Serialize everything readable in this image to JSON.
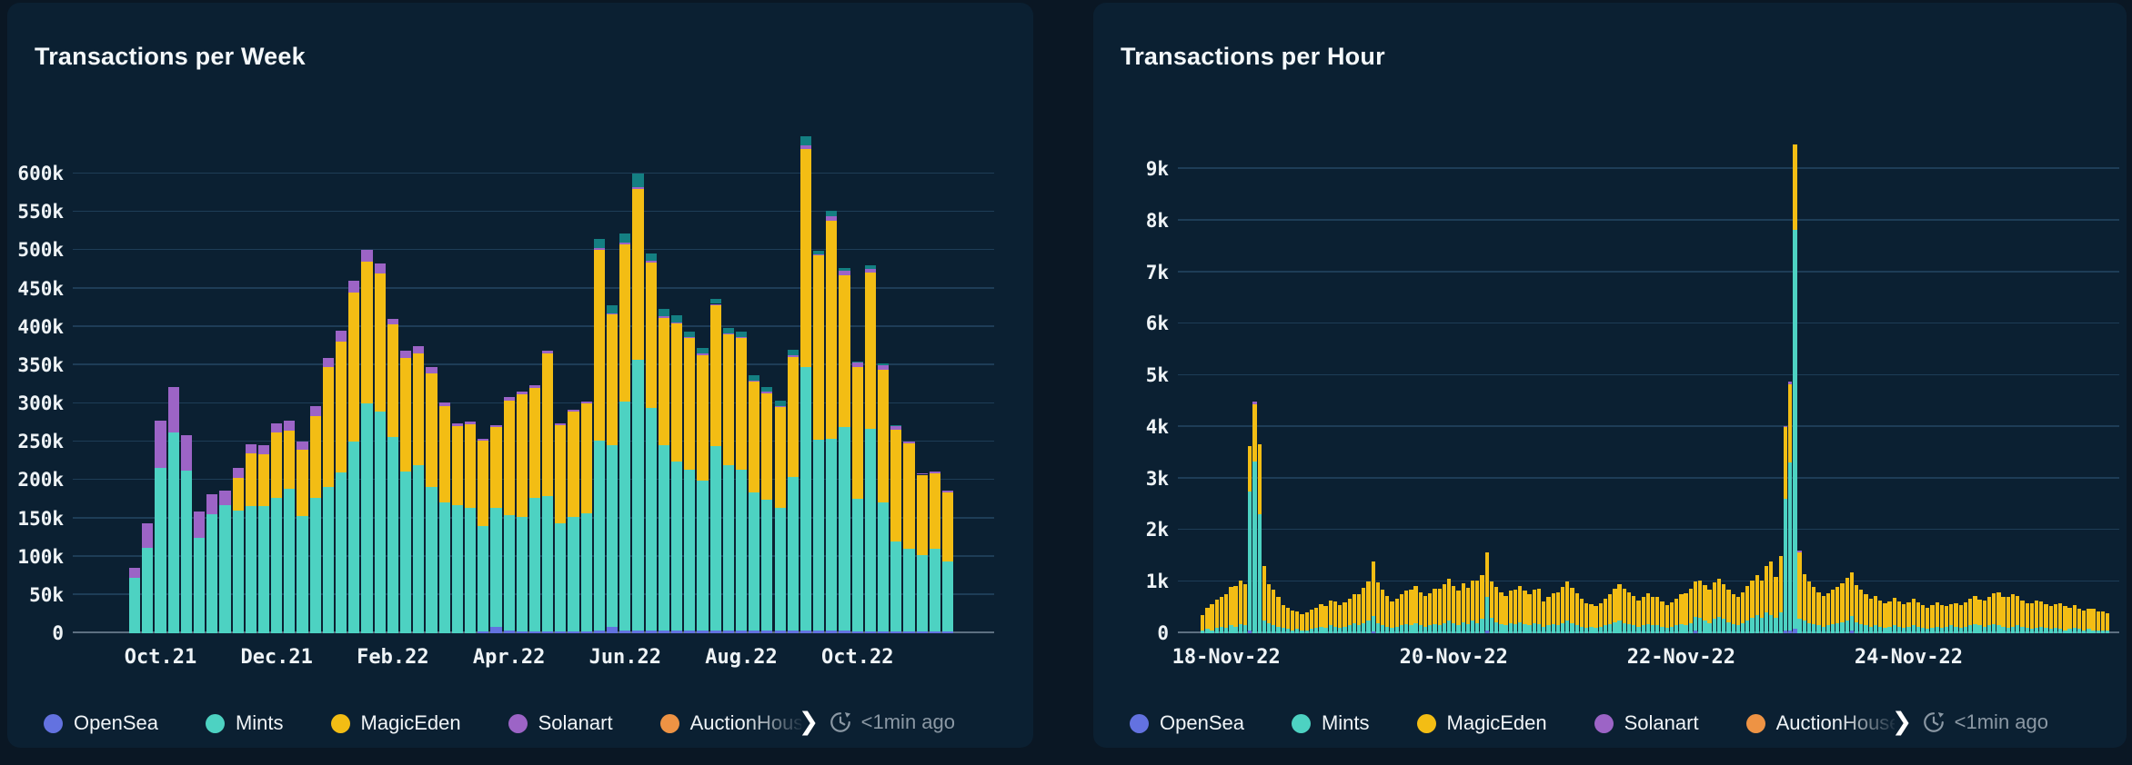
{
  "page": {
    "background": "#0a1724",
    "card_background": "#0b2032"
  },
  "legend": {
    "items": [
      {
        "label": "OpenSea",
        "color": "#6372e0"
      },
      {
        "label": "Mints",
        "color": "#4dd2c2"
      },
      {
        "label": "MagicEden",
        "color": "#f3bd14"
      },
      {
        "label": "Solanart",
        "color": "#9c64c6"
      },
      {
        "label": "AuctionHouse",
        "color": "#ee9344"
      }
    ],
    "overflow_chevron": "❯",
    "updated": "<1min ago"
  },
  "chart_data": [
    {
      "type": "bar",
      "stacked": true,
      "title": "Transactions per Week",
      "xlabel": "",
      "ylabel": "",
      "grid": true,
      "legend_position": "bottom",
      "value_unit": "k (thousands of transactions)",
      "ylim": [
        0,
        650
      ],
      "y_ticks": [
        {
          "v": 0,
          "label": "0"
        },
        {
          "v": 50,
          "label": "50k"
        },
        {
          "v": 100,
          "label": "100k"
        },
        {
          "v": 150,
          "label": "150k"
        },
        {
          "v": 200,
          "label": "200k"
        },
        {
          "v": 250,
          "label": "250k"
        },
        {
          "v": 300,
          "label": "300k"
        },
        {
          "v": 350,
          "label": "350k"
        },
        {
          "v": 400,
          "label": "400k"
        },
        {
          "v": 450,
          "label": "450k"
        },
        {
          "v": 500,
          "label": "500k"
        },
        {
          "v": 550,
          "label": "550k"
        },
        {
          "v": 600,
          "label": "600k"
        }
      ],
      "x_ticks": [
        {
          "index": 2,
          "label": "Oct.21"
        },
        {
          "index": 11,
          "label": "Dec.21"
        },
        {
          "index": 20,
          "label": "Feb.22"
        },
        {
          "index": 29,
          "label": "Apr.22"
        },
        {
          "index": 38,
          "label": "Jun.22"
        },
        {
          "index": 47,
          "label": "Aug.22"
        },
        {
          "index": 56,
          "label": "Oct.22"
        }
      ],
      "series_order": [
        "OpenSea",
        "Mints",
        "MagicEden",
        "Solanart",
        "Unlabeled (dark teal)"
      ],
      "colors": [
        "#6372e0",
        "#4dd2c2",
        "#f3bd14",
        "#9c64c6",
        "#147f82"
      ],
      "bars": [
        [
          0,
          72,
          0,
          13,
          0
        ],
        [
          0,
          111,
          0,
          33,
          0
        ],
        [
          0,
          216,
          0,
          61,
          0
        ],
        [
          0,
          262,
          0,
          59,
          0
        ],
        [
          0,
          212,
          0,
          47,
          0
        ],
        [
          0,
          124,
          0,
          35,
          0
        ],
        [
          0,
          155,
          0,
          27,
          0
        ],
        [
          0,
          167,
          0,
          19,
          0
        ],
        [
          0,
          160,
          43,
          13,
          0
        ],
        [
          0,
          166,
          69,
          12,
          0
        ],
        [
          0,
          166,
          68,
          12,
          0
        ],
        [
          0,
          177,
          85,
          12,
          0
        ],
        [
          0,
          189,
          76,
          12,
          0
        ],
        [
          0,
          153,
          87,
          10,
          0
        ],
        [
          0,
          177,
          107,
          12,
          0
        ],
        [
          0,
          191,
          156,
          13,
          0
        ],
        [
          0,
          210,
          171,
          14,
          0
        ],
        [
          0,
          250,
          195,
          15,
          0
        ],
        [
          0,
          300,
          185,
          15,
          0
        ],
        [
          0,
          290,
          180,
          13,
          0
        ],
        [
          0,
          256,
          147,
          7,
          0
        ],
        [
          0,
          211,
          149,
          9,
          0
        ],
        [
          0,
          220,
          145,
          10,
          0
        ],
        [
          0,
          191,
          148,
          8,
          0
        ],
        [
          0,
          171,
          126,
          4,
          0
        ],
        [
          0,
          167,
          104,
          3,
          0
        ],
        [
          0,
          164,
          109,
          3,
          0
        ],
        [
          2,
          138,
          111,
          3,
          0
        ],
        [
          8,
          156,
          105,
          3,
          0
        ],
        [
          4,
          150,
          150,
          4,
          0
        ],
        [
          2,
          150,
          160,
          4,
          0
        ],
        [
          2,
          175,
          143,
          4,
          0
        ],
        [
          2,
          177,
          186,
          4,
          0
        ],
        [
          2,
          142,
          128,
          2,
          0
        ],
        [
          2,
          150,
          138,
          2,
          0
        ],
        [
          2,
          155,
          143,
          2,
          0
        ],
        [
          4,
          248,
          249,
          2,
          12
        ],
        [
          8,
          238,
          170,
          2,
          10
        ],
        [
          4,
          298,
          206,
          2,
          12
        ],
        [
          4,
          353,
          223,
          2,
          18
        ],
        [
          4,
          290,
          190,
          2,
          10
        ],
        [
          4,
          241,
          167,
          2,
          9
        ],
        [
          4,
          220,
          180,
          2,
          9
        ],
        [
          4,
          209,
          172,
          2,
          7
        ],
        [
          4,
          195,
          164,
          2,
          7
        ],
        [
          4,
          240,
          184,
          2,
          7
        ],
        [
          4,
          215,
          171,
          2,
          7
        ],
        [
          4,
          210,
          171,
          2,
          7
        ],
        [
          4,
          180,
          144,
          2,
          7
        ],
        [
          4,
          170,
          139,
          2,
          7
        ],
        [
          4,
          160,
          131,
          2,
          7
        ],
        [
          4,
          200,
          157,
          2,
          7
        ],
        [
          4,
          344,
          284,
          5,
          12
        ],
        [
          4,
          249,
          240,
          2,
          4
        ],
        [
          4,
          250,
          284,
          7,
          7
        ],
        [
          4,
          265,
          198,
          6,
          4
        ],
        [
          2,
          173,
          172,
          6,
          2
        ],
        [
          2,
          265,
          204,
          5,
          4
        ],
        [
          2,
          169,
          173,
          6,
          2
        ],
        [
          2,
          118,
          146,
          4,
          2
        ],
        [
          2,
          108,
          138,
          2,
          0
        ],
        [
          2,
          100,
          105,
          2,
          0
        ],
        [
          2,
          108,
          99,
          2,
          0
        ],
        [
          2,
          92,
          90,
          2,
          0
        ]
      ]
    },
    {
      "type": "bar",
      "stacked": true,
      "title": "Transactions per Hour",
      "xlabel": "",
      "ylabel": "",
      "grid": true,
      "legend_position": "bottom",
      "value_unit": "k (thousands of transactions)",
      "ylim": [
        0,
        9.65
      ],
      "y_ticks": [
        {
          "v": 0,
          "label": "0"
        },
        {
          "v": 1,
          "label": "1k"
        },
        {
          "v": 2,
          "label": "2k"
        },
        {
          "v": 3,
          "label": "3k"
        },
        {
          "v": 4,
          "label": "4k"
        },
        {
          "v": 5,
          "label": "5k"
        },
        {
          "v": 6,
          "label": "6k"
        },
        {
          "v": 7,
          "label": "7k"
        },
        {
          "v": 8,
          "label": "8k"
        },
        {
          "v": 9,
          "label": "9k"
        }
      ],
      "x_ticks": [
        {
          "index": 5,
          "label": "18-Nov-22"
        },
        {
          "index": 53,
          "label": "20-Nov-22"
        },
        {
          "index": 101,
          "label": "22-Nov-22"
        },
        {
          "index": 149,
          "label": "24-Nov-22"
        }
      ],
      "series_order": [
        "OpenSea",
        "Mints",
        "MagicEden",
        "Solanart"
      ],
      "colors": [
        "#6372e0",
        "#4dd2c2",
        "#f3bd14",
        "#9c64c6"
      ],
      "mints": [
        0.05,
        0.08,
        0.06,
        0.1,
        0.12,
        0.1,
        0.15,
        0.12,
        0.18,
        0.15,
        2.69,
        3.32,
        2.31,
        0.25,
        0.2,
        0.15,
        0.12,
        0.1,
        0.08,
        0.06,
        0.08,
        0.05,
        0.06,
        0.08,
        0.1,
        0.12,
        0.1,
        0.15,
        0.12,
        0.1,
        0.12,
        0.15,
        0.2,
        0.15,
        0.2,
        0.25,
        0.3,
        0.2,
        0.15,
        0.12,
        0.1,
        0.12,
        0.15,
        0.18,
        0.15,
        0.2,
        0.15,
        0.12,
        0.15,
        0.18,
        0.15,
        0.2,
        0.25,
        0.2,
        0.15,
        0.22,
        0.18,
        0.25,
        0.2,
        0.28,
        0.65,
        0.3,
        0.22,
        0.18,
        0.15,
        0.2,
        0.18,
        0.22,
        0.18,
        0.15,
        0.2,
        0.18,
        0.12,
        0.15,
        0.18,
        0.15,
        0.2,
        0.25,
        0.2,
        0.15,
        0.12,
        0.1,
        0.12,
        0.1,
        0.12,
        0.15,
        0.18,
        0.22,
        0.25,
        0.2,
        0.18,
        0.15,
        0.12,
        0.15,
        0.18,
        0.15,
        0.15,
        0.12,
        0.1,
        0.12,
        0.15,
        0.18,
        0.15,
        0.2,
        0.25,
        0.3,
        0.25,
        0.2,
        0.28,
        0.32,
        0.28,
        0.22,
        0.18,
        0.15,
        0.2,
        0.25,
        0.3,
        0.35,
        0.3,
        0.4,
        0.35,
        0.3,
        0.4,
        2.56,
        3.25,
        7.74,
        0.28,
        0.25,
        0.2,
        0.18,
        0.15,
        0.12,
        0.15,
        0.18,
        0.2,
        0.22,
        0.25,
        0.28,
        0.22,
        0.18,
        0.15,
        0.12,
        0.15,
        0.12,
        0.1,
        0.12,
        0.15,
        0.12,
        0.1,
        0.12,
        0.15,
        0.12,
        0.1,
        0.08,
        0.1,
        0.12,
        0.1,
        0.12,
        0.15,
        0.12,
        0.1,
        0.12,
        0.15,
        0.18,
        0.15,
        0.12,
        0.15,
        0.18,
        0.15,
        0.12,
        0.1,
        0.12,
        0.15,
        0.12,
        0.1,
        0.08,
        0.1,
        0.12,
        0.1,
        0.08,
        0.1,
        0.08,
        0.06,
        0.08,
        0.1,
        0.08,
        0.06,
        0.08,
        0.06,
        0.05,
        0.06,
        0.05
      ],
      "magiceden": [
        0.3,
        0.42,
        0.5,
        0.55,
        0.58,
        0.65,
        0.75,
        0.8,
        0.85,
        0.8,
        0.88,
        1.11,
        1.35,
        1.05,
        0.75,
        0.7,
        0.58,
        0.45,
        0.42,
        0.38,
        0.35,
        0.32,
        0.35,
        0.38,
        0.4,
        0.45,
        0.42,
        0.48,
        0.5,
        0.45,
        0.48,
        0.52,
        0.55,
        0.6,
        0.68,
        0.75,
        1.05,
        0.78,
        0.7,
        0.6,
        0.52,
        0.55,
        0.6,
        0.65,
        0.7,
        0.72,
        0.65,
        0.6,
        0.62,
        0.68,
        0.72,
        0.75,
        0.8,
        0.72,
        0.68,
        0.75,
        0.7,
        0.78,
        0.82,
        0.85,
        0.86,
        0.7,
        0.68,
        0.62,
        0.58,
        0.62,
        0.66,
        0.7,
        0.64,
        0.6,
        0.65,
        0.68,
        0.5,
        0.55,
        0.6,
        0.65,
        0.7,
        0.75,
        0.68,
        0.62,
        0.55,
        0.48,
        0.45,
        0.42,
        0.46,
        0.52,
        0.58,
        0.64,
        0.7,
        0.66,
        0.62,
        0.58,
        0.52,
        0.56,
        0.6,
        0.55,
        0.55,
        0.5,
        0.45,
        0.48,
        0.52,
        0.58,
        0.62,
        0.66,
        0.7,
        0.72,
        0.68,
        0.64,
        0.7,
        0.74,
        0.68,
        0.62,
        0.58,
        0.55,
        0.6,
        0.66,
        0.72,
        0.78,
        0.72,
        0.9,
        1.05,
        0.8,
        1.1,
        1.38,
        1.52,
        1.65,
        1.29,
        0.9,
        0.8,
        0.72,
        0.65,
        0.6,
        0.62,
        0.66,
        0.7,
        0.75,
        0.82,
        0.85,
        0.72,
        0.66,
        0.6,
        0.55,
        0.58,
        0.52,
        0.48,
        0.5,
        0.54,
        0.5,
        0.46,
        0.48,
        0.52,
        0.48,
        0.44,
        0.42,
        0.45,
        0.48,
        0.44,
        0.4,
        0.42,
        0.46,
        0.44,
        0.48,
        0.52,
        0.55,
        0.5,
        0.52,
        0.56,
        0.6,
        0.64,
        0.58,
        0.6,
        0.64,
        0.58,
        0.52,
        0.48,
        0.5,
        0.54,
        0.5,
        0.46,
        0.44,
        0.46,
        0.5,
        0.46,
        0.42,
        0.44,
        0.4,
        0.38,
        0.4,
        0.42,
        0.38,
        0.36,
        0.34
      ],
      "opensea_sparse": {
        "10": 0.05,
        "36": 0.04,
        "60": 0.05,
        "104": 0.06,
        "123": 0.05,
        "124": 0.06,
        "125": 0.08,
        "137": 0.05
      },
      "solanart_sparse": {
        "11": 0.06,
        "123": 0.03,
        "124": 0.05,
        "126": 0.04
      }
    }
  ]
}
